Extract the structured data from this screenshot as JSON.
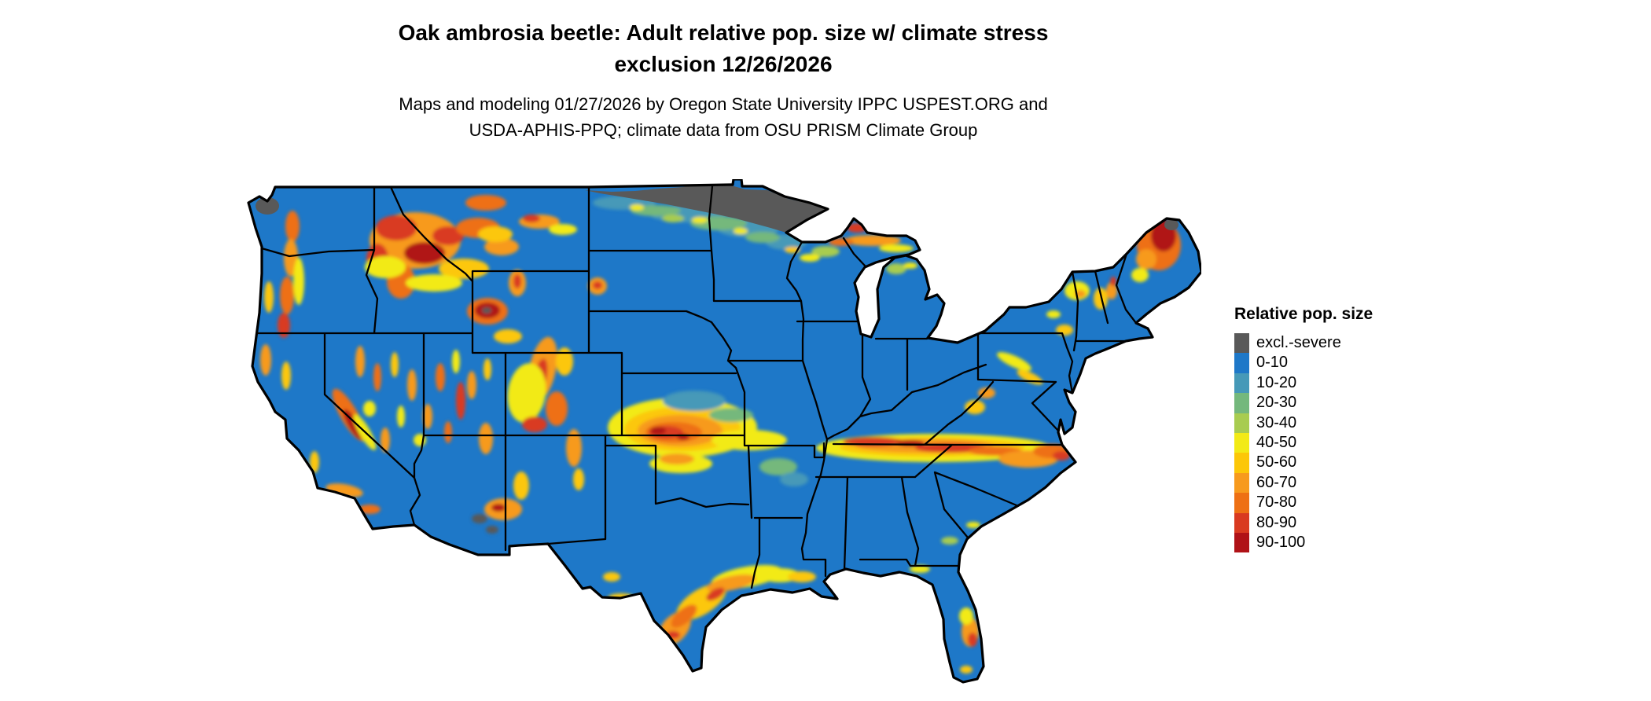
{
  "title": {
    "line1": "Oak ambrosia beetle: Adult relative pop. size w/ climate stress",
    "line2": "exclusion 12/26/2026"
  },
  "subtitle": {
    "line1": "Maps and modeling 01/27/2026 by Oregon State University IPPC USPEST.ORG and",
    "line2": "USDA-APHIS-PPQ; climate data from OSU PRISM Climate Group"
  },
  "map": {
    "region": "Continental United States",
    "base_color": "#1e78c8",
    "border_color": "#000000"
  },
  "legend": {
    "title": "Relative pop. size",
    "entries": [
      {
        "key": "excl",
        "label": "excl.-severe",
        "color": "#595959"
      },
      {
        "key": "v0",
        "label": "0-10",
        "color": "#1e78c8"
      },
      {
        "key": "v10",
        "label": "10-20",
        "color": "#4699b8"
      },
      {
        "key": "v20",
        "label": "20-30",
        "color": "#74b87c"
      },
      {
        "key": "v30",
        "label": "30-40",
        "color": "#a8cc50"
      },
      {
        "key": "v40",
        "label": "40-50",
        "color": "#f2ea16"
      },
      {
        "key": "v50",
        "label": "50-60",
        "color": "#fcc708"
      },
      {
        "key": "v60",
        "label": "60-70",
        "color": "#f79a1d"
      },
      {
        "key": "v70",
        "label": "70-80",
        "color": "#ee7014"
      },
      {
        "key": "v80",
        "label": "80-90",
        "color": "#d93a20"
      },
      {
        "key": "v90",
        "label": "90-100",
        "color": "#b01217"
      }
    ]
  }
}
